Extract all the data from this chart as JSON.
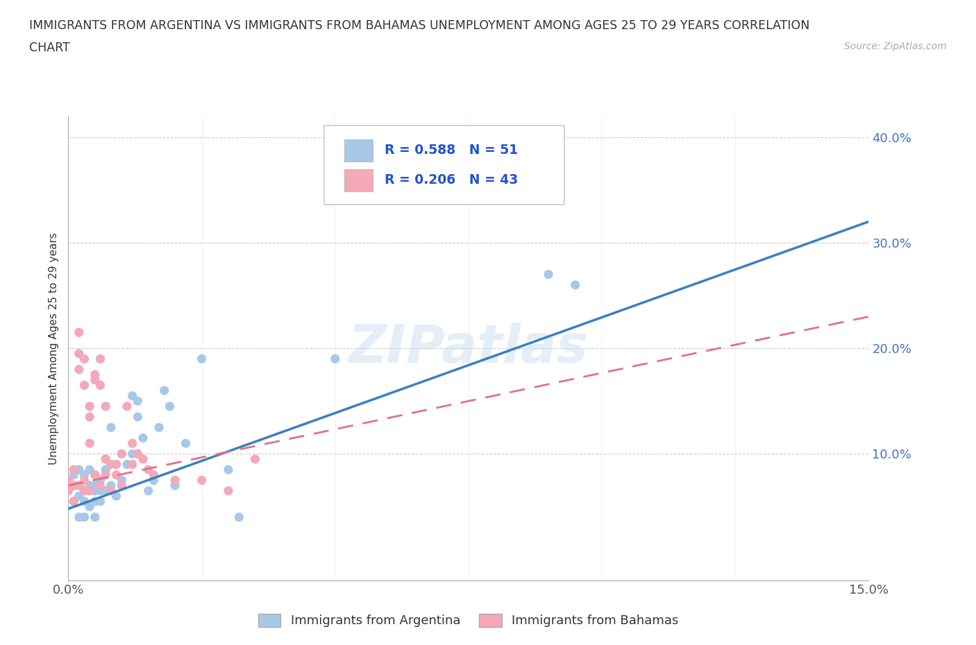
{
  "title_line1": "IMMIGRANTS FROM ARGENTINA VS IMMIGRANTS FROM BAHAMAS UNEMPLOYMENT AMONG AGES 25 TO 29 YEARS CORRELATION",
  "title_line2": "CHART",
  "source": "Source: ZipAtlas.com",
  "ylabel": "Unemployment Among Ages 25 to 29 years",
  "xlim": [
    0.0,
    0.15
  ],
  "ylim": [
    -0.02,
    0.42
  ],
  "xticks": [
    0.0,
    0.025,
    0.05,
    0.075,
    0.1,
    0.125,
    0.15
  ],
  "xticklabels": [
    "0.0%",
    "",
    "",
    "",
    "",
    "",
    "15.0%"
  ],
  "yticks": [
    0.0,
    0.1,
    0.2,
    0.3,
    0.4
  ],
  "argentina_color": "#a8c8e8",
  "bahamas_color": "#f4a8b8",
  "argentina_line_color": "#3a7fc1",
  "bahamas_line_color": "#e07090",
  "R_argentina": 0.588,
  "N_argentina": 51,
  "R_bahamas": 0.206,
  "N_bahamas": 43,
  "watermark": "ZIPatlas",
  "legend_label_argentina": "Immigrants from Argentina",
  "legend_label_bahamas": "Immigrants from Bahamas",
  "argentina_trend_x0": 0.0,
  "argentina_trend_y0": 0.048,
  "argentina_trend_x1": 0.15,
  "argentina_trend_y1": 0.32,
  "bahamas_trend_x0": 0.0,
  "bahamas_trend_y0": 0.07,
  "bahamas_trend_x1": 0.15,
  "bahamas_trend_y1": 0.23,
  "argentina_x": [
    0.0,
    0.001,
    0.001,
    0.001,
    0.002,
    0.002,
    0.002,
    0.002,
    0.003,
    0.003,
    0.003,
    0.003,
    0.004,
    0.004,
    0.004,
    0.005,
    0.005,
    0.005,
    0.005,
    0.005,
    0.006,
    0.006,
    0.006,
    0.007,
    0.007,
    0.007,
    0.008,
    0.008,
    0.009,
    0.009,
    0.01,
    0.01,
    0.011,
    0.012,
    0.012,
    0.013,
    0.013,
    0.014,
    0.015,
    0.016,
    0.017,
    0.018,
    0.019,
    0.02,
    0.022,
    0.025,
    0.03,
    0.032,
    0.05,
    0.09,
    0.095
  ],
  "argentina_y": [
    0.065,
    0.07,
    0.08,
    0.055,
    0.085,
    0.07,
    0.06,
    0.04,
    0.08,
    0.065,
    0.055,
    0.04,
    0.085,
    0.07,
    0.05,
    0.08,
    0.07,
    0.065,
    0.055,
    0.04,
    0.075,
    0.065,
    0.055,
    0.095,
    0.085,
    0.065,
    0.125,
    0.07,
    0.09,
    0.06,
    0.1,
    0.075,
    0.09,
    0.155,
    0.1,
    0.135,
    0.15,
    0.115,
    0.065,
    0.075,
    0.125,
    0.16,
    0.145,
    0.07,
    0.11,
    0.19,
    0.085,
    0.04,
    0.19,
    0.27,
    0.26
  ],
  "bahamas_x": [
    0.0,
    0.0,
    0.001,
    0.001,
    0.001,
    0.002,
    0.002,
    0.002,
    0.002,
    0.003,
    0.003,
    0.003,
    0.003,
    0.004,
    0.004,
    0.004,
    0.004,
    0.005,
    0.005,
    0.005,
    0.006,
    0.006,
    0.006,
    0.007,
    0.007,
    0.007,
    0.008,
    0.008,
    0.009,
    0.009,
    0.01,
    0.01,
    0.011,
    0.012,
    0.012,
    0.013,
    0.014,
    0.015,
    0.016,
    0.02,
    0.025,
    0.03,
    0.035
  ],
  "bahamas_y": [
    0.065,
    0.075,
    0.085,
    0.07,
    0.055,
    0.215,
    0.18,
    0.195,
    0.07,
    0.19,
    0.165,
    0.075,
    0.065,
    0.145,
    0.135,
    0.11,
    0.065,
    0.175,
    0.17,
    0.08,
    0.19,
    0.165,
    0.07,
    0.145,
    0.095,
    0.08,
    0.09,
    0.065,
    0.09,
    0.08,
    0.1,
    0.07,
    0.145,
    0.11,
    0.09,
    0.1,
    0.095,
    0.085,
    0.08,
    0.075,
    0.075,
    0.065,
    0.095
  ]
}
